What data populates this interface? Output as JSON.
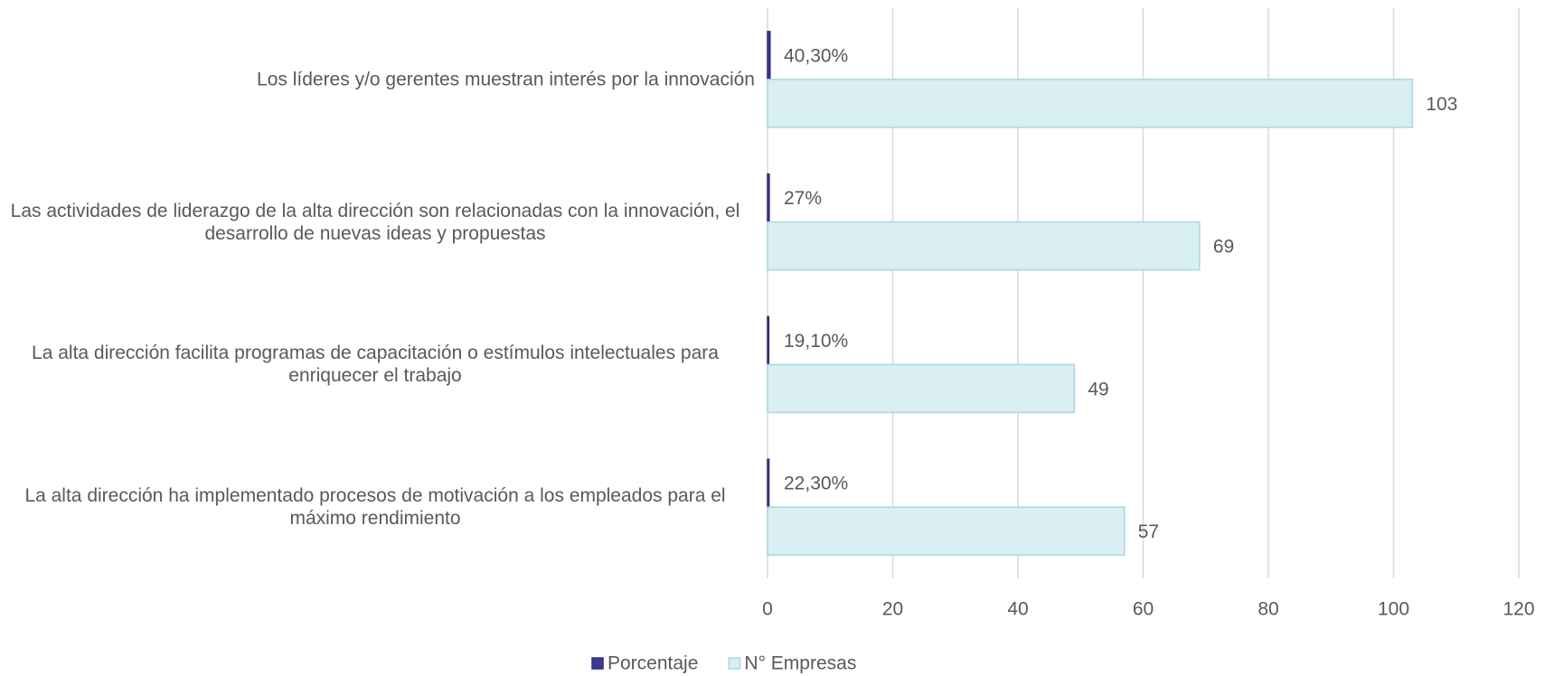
{
  "chart_data": {
    "type": "hbar",
    "categories": [
      "Los líderes y/o gerentes muestran interés por la innovación",
      "Las actividades de liderazgo de la alta dirección son relacionadas con la innovación, el desarrollo de nuevas ideas y propuestas",
      "La alta dirección facilita programas de capacitación o estímulos intelectuales para enriquecer el trabajo",
      "La alta dirección ha implementado procesos de motivación a los empleados para el máximo rendimiento"
    ],
    "series": [
      {
        "name": "Porcentaje",
        "color": "#3b3b8f",
        "values": [
          0.403,
          0.27,
          0.191,
          0.223
        ],
        "value_labels": [
          "40,30%",
          "27%",
          "19,10%",
          "22,30%"
        ]
      },
      {
        "name": "N° Empresas",
        "color": "#daeff3",
        "values": [
          103,
          69,
          49,
          57
        ]
      }
    ],
    "xlim": [
      0,
      120
    ],
    "xticks": [
      0,
      20,
      40,
      60,
      80,
      100,
      120
    ],
    "grid": true,
    "legend": "bottom"
  }
}
